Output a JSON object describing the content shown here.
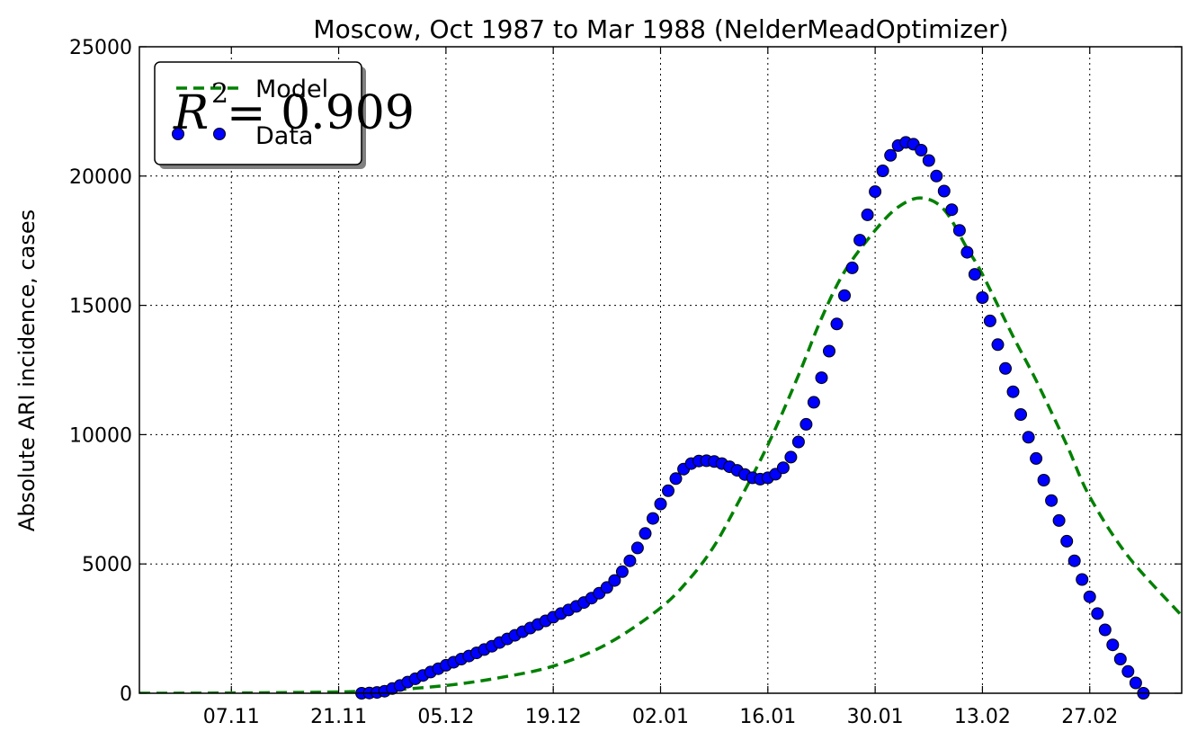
{
  "chart_data": {
    "type": "line",
    "title": "Moscow, Oct 1987 to Mar 1988 (NelderMeadOptimizer)",
    "xlabel": "",
    "ylabel": "Absolute ARI incidence, cases",
    "ylim": [
      0,
      25000
    ],
    "yticks": [
      "0",
      "5000",
      "10000",
      "15000",
      "20000",
      "25000"
    ],
    "xlim": [
      "1987-10-26",
      "1988-03-10"
    ],
    "xticks": [
      {
        "date": "1987-11-07",
        "label": "07.11"
      },
      {
        "date": "1987-11-21",
        "label": "21.11"
      },
      {
        "date": "1987-12-05",
        "label": "05.12"
      },
      {
        "date": "1987-12-19",
        "label": "19.12"
      },
      {
        "date": "1988-01-02",
        "label": "02.01"
      },
      {
        "date": "1988-01-16",
        "label": "16.01"
      },
      {
        "date": "1988-01-30",
        "label": "30.01"
      },
      {
        "date": "1988-02-13",
        "label": "13.02"
      },
      {
        "date": "1988-02-27",
        "label": "27.02"
      }
    ],
    "grid": true,
    "legend_position": "top-left",
    "annotation": {
      "base": "R",
      "sup": "2",
      "rest": " = 0.909"
    },
    "series": [
      {
        "name": "Model",
        "style": "dashed",
        "color": "#008000",
        "points": [
          [
            "1987-10-26",
            0
          ],
          [
            "1987-11-07",
            10
          ],
          [
            "1987-11-16",
            30
          ],
          [
            "1987-11-21",
            50
          ],
          [
            "1987-11-27",
            110
          ],
          [
            "1987-12-05",
            300
          ],
          [
            "1987-12-12",
            600
          ],
          [
            "1987-12-19",
            1050
          ],
          [
            "1987-12-26",
            1900
          ],
          [
            "1988-01-02",
            3300
          ],
          [
            "1988-01-06",
            4500
          ],
          [
            "1988-01-09",
            5700
          ],
          [
            "1988-01-12",
            7300
          ],
          [
            "1988-01-16",
            9600
          ],
          [
            "1988-01-20",
            12300
          ],
          [
            "1988-01-23",
            14500
          ],
          [
            "1988-01-26",
            16300
          ],
          [
            "1988-01-30",
            17900
          ],
          [
            "1988-02-02",
            18800
          ],
          [
            "1988-02-05",
            19150
          ],
          [
            "1988-02-08",
            18700
          ],
          [
            "1988-02-11",
            17200
          ],
          [
            "1988-02-13",
            16200
          ],
          [
            "1988-02-17",
            13800
          ],
          [
            "1988-02-20",
            12100
          ],
          [
            "1988-02-24",
            9600
          ],
          [
            "1988-02-27",
            7600
          ],
          [
            "1988-03-03",
            5300
          ],
          [
            "1988-03-10",
            3000
          ]
        ]
      },
      {
        "name": "Data",
        "style": "markers",
        "color": "#0000ff",
        "start": "1987-11-24",
        "values": [
          0,
          10,
          30,
          80,
          180,
          300,
          430,
          560,
          690,
          820,
          950,
          1080,
          1200,
          1320,
          1440,
          1560,
          1690,
          1820,
          1960,
          2100,
          2240,
          2380,
          2520,
          2660,
          2800,
          2940,
          3080,
          3220,
          3360,
          3510,
          3680,
          3870,
          4090,
          4360,
          4700,
          5120,
          5620,
          6180,
          6760,
          7320,
          7830,
          8300,
          8670,
          8880,
          8980,
          8990,
          8960,
          8880,
          8760,
          8620,
          8460,
          8330,
          8280,
          8330,
          8470,
          8720,
          9130,
          9720,
          10400,
          11250,
          12200,
          13230,
          14280,
          15380,
          16450,
          17520,
          18500,
          19400,
          20200,
          20800,
          21180,
          21300,
          21230,
          21000,
          20600,
          20000,
          19420,
          18700,
          17900,
          17050,
          16200,
          15300,
          14400,
          13480,
          12560,
          11660,
          10780,
          9900,
          9080,
          8240,
          7450,
          6680,
          5880,
          5120,
          4400,
          3730,
          3080,
          2450,
          1870,
          1320,
          840,
          400,
          0
        ]
      }
    ]
  }
}
